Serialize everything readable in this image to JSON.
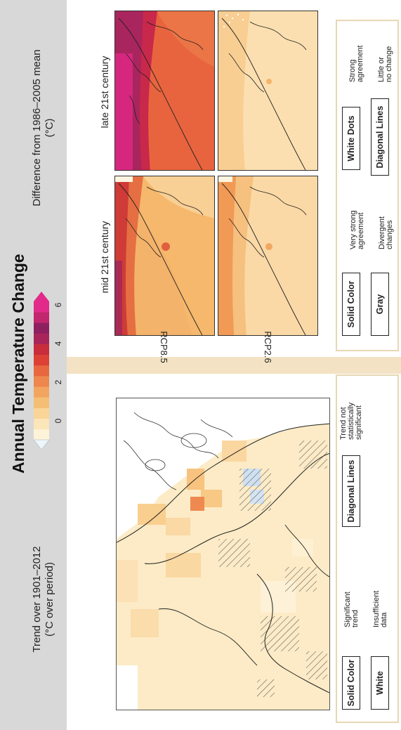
{
  "title": "Annual Temperature Change",
  "left_panel": {
    "caption": "Trend over 1901–2012\n(°C over period)"
  },
  "right_panel": {
    "caption": "Difference from 1986–2005 mean\n(°C)",
    "column_labels": [
      "mid 21st century",
      "late 21st century"
    ],
    "row_labels": [
      "RCP8.5",
      "RCP2.6"
    ]
  },
  "colorbar": {
    "tick_labels": [
      "0",
      "2",
      "4",
      "6"
    ],
    "colors": [
      "#fdf3d8",
      "#fbe6ba",
      "#f9d597",
      "#f5be75",
      "#f2a55f",
      "#ee874d",
      "#e8673f",
      "#dd4135",
      "#c92d3b",
      "#a8255a",
      "#8e2060",
      "#c2266e",
      "#e22a8a"
    ]
  },
  "legend_observed": {
    "items": [
      {
        "swatch": "Solid Color",
        "description": "Significant\ntrend"
      },
      {
        "swatch": "White",
        "description": "Insufficient\ndata"
      },
      {
        "swatch": "Diagonal Lines",
        "description": "Trend not\nstatistically\nsignificant"
      }
    ]
  },
  "legend_projected": {
    "items": [
      {
        "swatch": "Solid Color",
        "description": "Very strong\nagreement"
      },
      {
        "swatch": "Gray",
        "description": "Divergent\nchanges"
      },
      {
        "swatch": "White Dots",
        "description": "Strong\nagreement"
      },
      {
        "swatch": "Diagonal Lines",
        "description": "Little or\nno change"
      }
    ]
  }
}
